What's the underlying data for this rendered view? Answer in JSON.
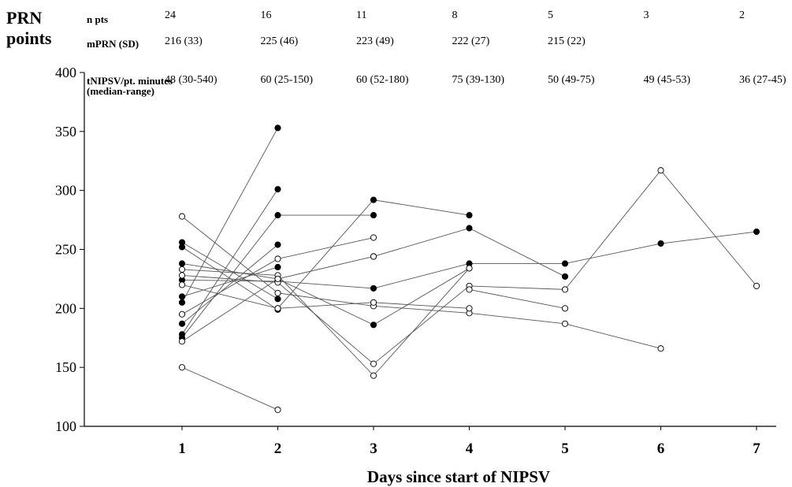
{
  "chart_data": {
    "type": "line",
    "ylabel_lines": [
      "PRN",
      "points"
    ],
    "xlabel": "Days since start of NIPSV",
    "ylim": [
      100,
      400
    ],
    "yticks": [
      100,
      150,
      200,
      250,
      300,
      350,
      400
    ],
    "xticks": [
      1,
      2,
      3,
      4,
      5,
      6,
      7
    ],
    "grid": false,
    "marker_legend": "filled and open circles (no legend printed)",
    "table": {
      "rows": [
        {
          "label": "n pts",
          "values": [
            "24",
            "16",
            "11",
            "8",
            "5",
            "3",
            "2"
          ]
        },
        {
          "label": "mPRN (SD)",
          "values": [
            "216 (33)",
            "225 (46)",
            "223 (49)",
            "222 (27)",
            "215 (22)",
            "",
            ""
          ]
        },
        {
          "label": "tNIPSV/pt. minutes (median-range)",
          "values": [
            "48 (30-540)",
            "60 (25-150)",
            "60 (52-180)",
            "75 (39-130)",
            "50 (49-75)",
            "49 (45-53)",
            "36 (27-45)"
          ]
        }
      ]
    },
    "series": [
      {
        "filled": true,
        "x": [
          1,
          2
        ],
        "y": [
          205,
          353
        ]
      },
      {
        "filled": true,
        "x": [
          1,
          2
        ],
        "y": [
          178,
          301
        ]
      },
      {
        "filled": true,
        "x": [
          1,
          2,
          3
        ],
        "y": [
          175,
          279,
          279
        ]
      },
      {
        "filled": true,
        "x": [
          1,
          2
        ],
        "y": [
          187,
          254
        ]
      },
      {
        "filled": true,
        "x": [
          1,
          2
        ],
        "y": [
          210,
          235
        ]
      },
      {
        "filled": true,
        "x": [
          1,
          2
        ],
        "y": [
          252,
          199
        ]
      },
      {
        "filled": true,
        "x": [
          1,
          2
        ],
        "y": [
          256,
          208
        ]
      },
      {
        "filled": true,
        "x": [
          1,
          2,
          3,
          4,
          5,
          6,
          7
        ],
        "y": [
          224,
          223,
          217,
          238,
          238,
          255,
          265
        ]
      },
      {
        "filled": true,
        "x": [
          1,
          2,
          3,
          4
        ],
        "y": [
          238,
          225,
          186,
          234
        ]
      },
      {
        "filled": true,
        "x": [
          2,
          3,
          4
        ],
        "y": [
          200,
          292,
          279
        ]
      },
      {
        "filled": true,
        "x": [
          3,
          4,
          5
        ],
        "y": [
          244,
          268,
          227
        ]
      },
      {
        "filled": false,
        "x": [
          1,
          2,
          3,
          4,
          5,
          6
        ],
        "y": [
          278,
          213,
          202,
          196,
          187,
          166
        ]
      },
      {
        "filled": false,
        "x": [
          1,
          2
        ],
        "y": [
          150,
          114
        ]
      },
      {
        "filled": false,
        "x": [
          1,
          2,
          3
        ],
        "y": [
          195,
          242,
          260
        ]
      },
      {
        "filled": false,
        "x": [
          1,
          2,
          3,
          4,
          5,
          6,
          7
        ],
        "y": [
          228,
          222,
          153,
          219,
          216,
          317,
          219
        ]
      },
      {
        "filled": false,
        "x": [
          1,
          2,
          3,
          4
        ],
        "y": [
          233,
          228,
          143,
          234
        ]
      },
      {
        "filled": false,
        "x": [
          1,
          2,
          3,
          4
        ],
        "y": [
          220,
          200,
          205,
          200
        ]
      },
      {
        "filled": false,
        "x": [
          1,
          2,
          3
        ],
        "y": [
          172,
          225,
          244
        ]
      },
      {
        "filled": false,
        "x": [
          4,
          5
        ],
        "y": [
          216,
          200
        ]
      }
    ]
  }
}
